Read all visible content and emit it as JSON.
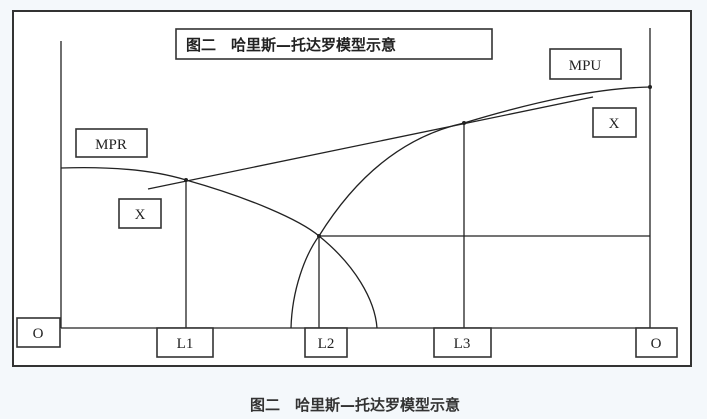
{
  "diagram": {
    "title": "图二　哈里斯—托达罗模型示意",
    "labels": {
      "mpr": "MPR",
      "mpu": "MPU",
      "x_left": "X",
      "x_right": "X",
      "origin_left": "O",
      "origin_right": "O",
      "l1": "L1",
      "l2": "L2",
      "l3": "L3"
    },
    "caption": "图二　哈里斯—托达罗模型示意"
  }
}
